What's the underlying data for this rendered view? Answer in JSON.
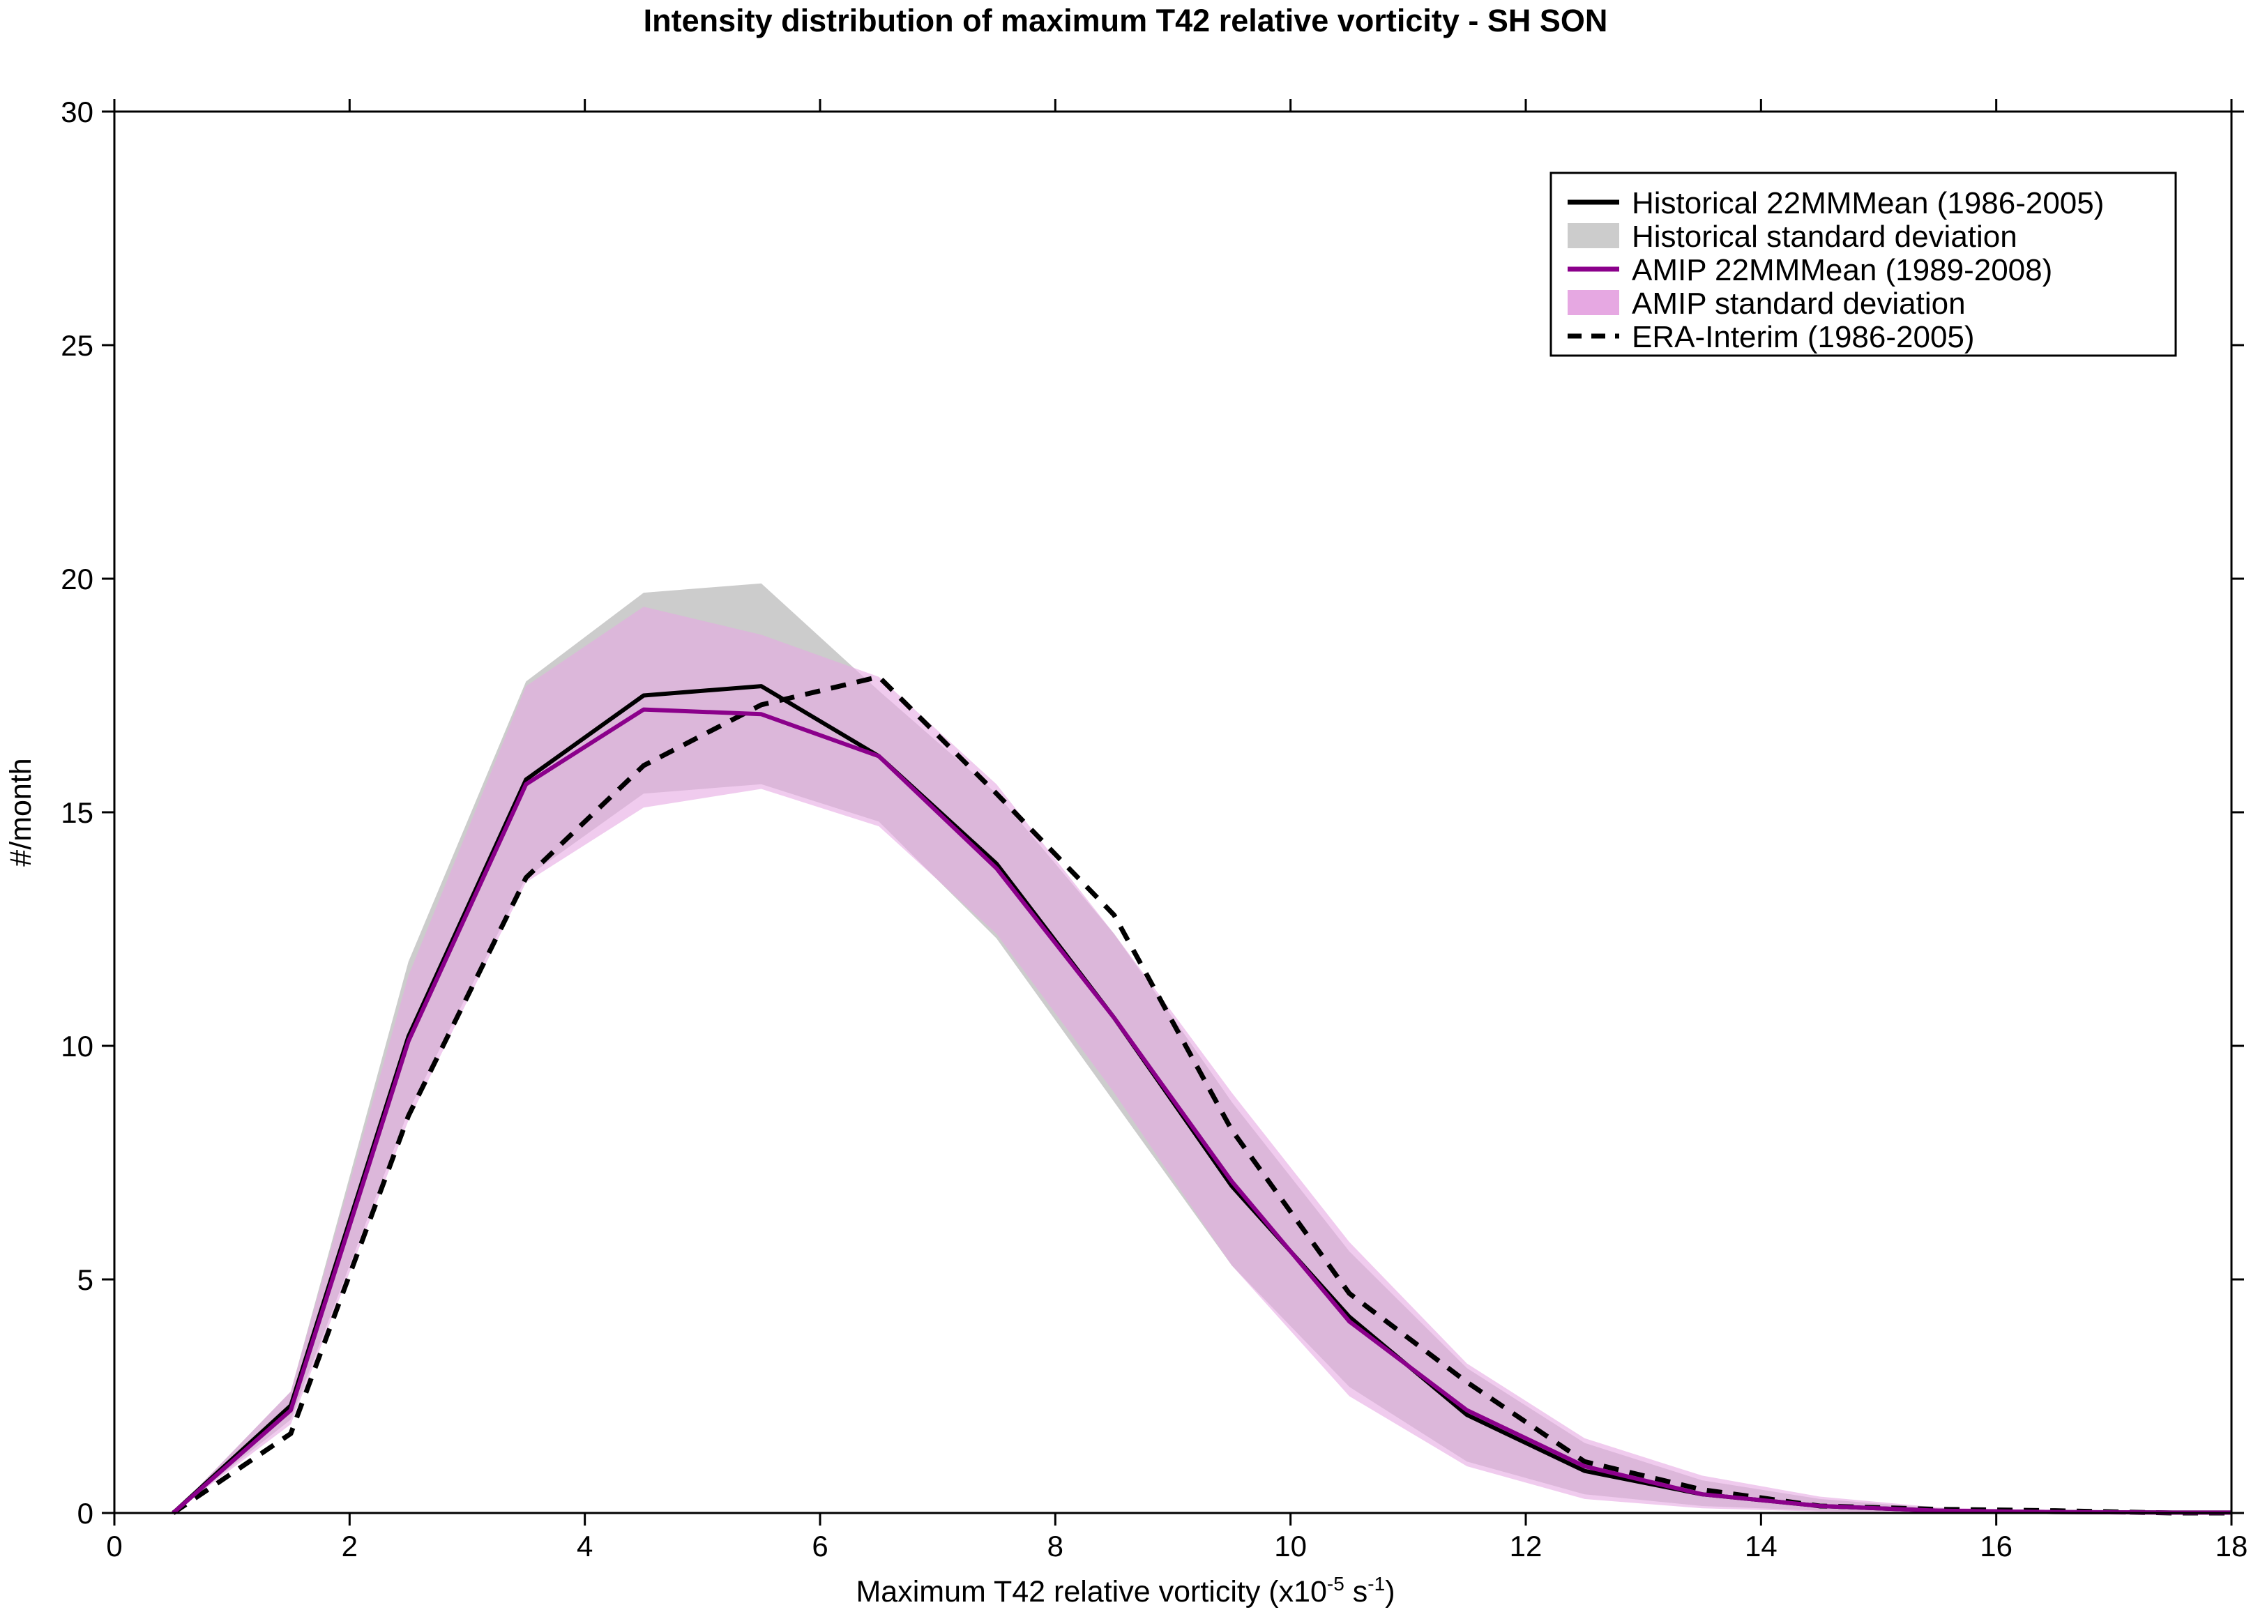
{
  "chart_data": {
    "type": "line",
    "title": "Intensity distribution of maximum T42 relative vorticity - SH SON",
    "xlabel_main": "Maximum T42 relative vorticity (x10",
    "xlabel_exp1": "-5",
    "xlabel_mid": " s",
    "xlabel_exp2": "-1",
    "xlabel_end": ")",
    "ylabel": "#/month",
    "xlim": [
      0,
      18
    ],
    "ylim": [
      0,
      30
    ],
    "xticks": [
      0,
      2,
      4,
      6,
      8,
      10,
      12,
      14,
      16,
      18
    ],
    "yticks": [
      0,
      5,
      10,
      15,
      20,
      25,
      30
    ],
    "grid": false,
    "legend_position": "top-right",
    "x": [
      0.5,
      1.5,
      2.5,
      3.5,
      4.5,
      5.5,
      6.5,
      7.5,
      8.5,
      9.5,
      10.5,
      11.5,
      12.5,
      13.5,
      14.5,
      15.5,
      16.5,
      17.5,
      18
    ],
    "bands": [
      {
        "name": "Historical standard deviation",
        "color": "#cccccc",
        "lower": [
          0,
          2.0,
          8.6,
          13.6,
          15.4,
          15.6,
          14.8,
          12.3,
          8.8,
          5.3,
          2.7,
          1.1,
          0.4,
          0.15,
          0.05,
          0.02,
          0.0,
          0.0,
          0.0
        ],
        "upper": [
          0,
          2.6,
          11.8,
          17.8,
          19.7,
          19.9,
          17.6,
          15.4,
          12.4,
          8.8,
          5.6,
          3.1,
          1.5,
          0.7,
          0.3,
          0.1,
          0.05,
          0.02,
          0.02
        ]
      },
      {
        "name": "AMIP standard deviation",
        "color": "#e6a8e2",
        "lower": [
          0,
          1.9,
          8.4,
          13.5,
          15.1,
          15.5,
          14.7,
          12.4,
          9.0,
          5.3,
          2.5,
          1.0,
          0.3,
          0.1,
          0.03,
          0.01,
          0.0,
          0.0,
          0.0
        ],
        "upper": [
          0,
          2.6,
          11.5,
          17.7,
          19.4,
          18.8,
          17.9,
          15.6,
          12.4,
          9.0,
          5.8,
          3.2,
          1.6,
          0.8,
          0.35,
          0.12,
          0.05,
          0.02,
          0.02
        ]
      }
    ],
    "series": [
      {
        "name": "Historical 22MMMean (1986-2005)",
        "color": "#000000",
        "style": "solid",
        "values": [
          0,
          2.3,
          10.2,
          15.7,
          17.5,
          17.7,
          16.2,
          13.9,
          10.6,
          7.0,
          4.2,
          2.1,
          0.9,
          0.4,
          0.15,
          0.05,
          0.02,
          0.01,
          0.01
        ]
      },
      {
        "name": "AMIP 22MMMean (1989-2008)",
        "color": "#8b008b",
        "style": "solid",
        "values": [
          0,
          2.2,
          10.1,
          15.6,
          17.2,
          17.1,
          16.2,
          13.8,
          10.6,
          7.1,
          4.1,
          2.2,
          1.0,
          0.4,
          0.15,
          0.05,
          0.02,
          0.01,
          0.01
        ]
      },
      {
        "name": "ERA-Interim (1986-2005)",
        "color": "#000000",
        "style": "dashed",
        "values": [
          0,
          1.7,
          8.5,
          13.6,
          16.0,
          17.3,
          17.9,
          15.4,
          12.8,
          8.2,
          4.7,
          2.8,
          1.1,
          0.5,
          0.15,
          0.08,
          0.05,
          0.0,
          0.0
        ]
      }
    ],
    "legend": [
      {
        "label": "Historical 22MMMean (1986-2005)",
        "kind": "line",
        "color": "#000000",
        "style": "solid"
      },
      {
        "label": "Historical standard deviation",
        "kind": "patch",
        "color": "#cccccc"
      },
      {
        "label": "AMIP 22MMMean (1989-2008)",
        "kind": "line",
        "color": "#8b008b",
        "style": "solid"
      },
      {
        "label": "AMIP standard deviation",
        "kind": "patch",
        "color": "#e6a8e2"
      },
      {
        "label": "ERA-Interim (1986-2005)",
        "kind": "line",
        "color": "#000000",
        "style": "dashed"
      }
    ]
  }
}
